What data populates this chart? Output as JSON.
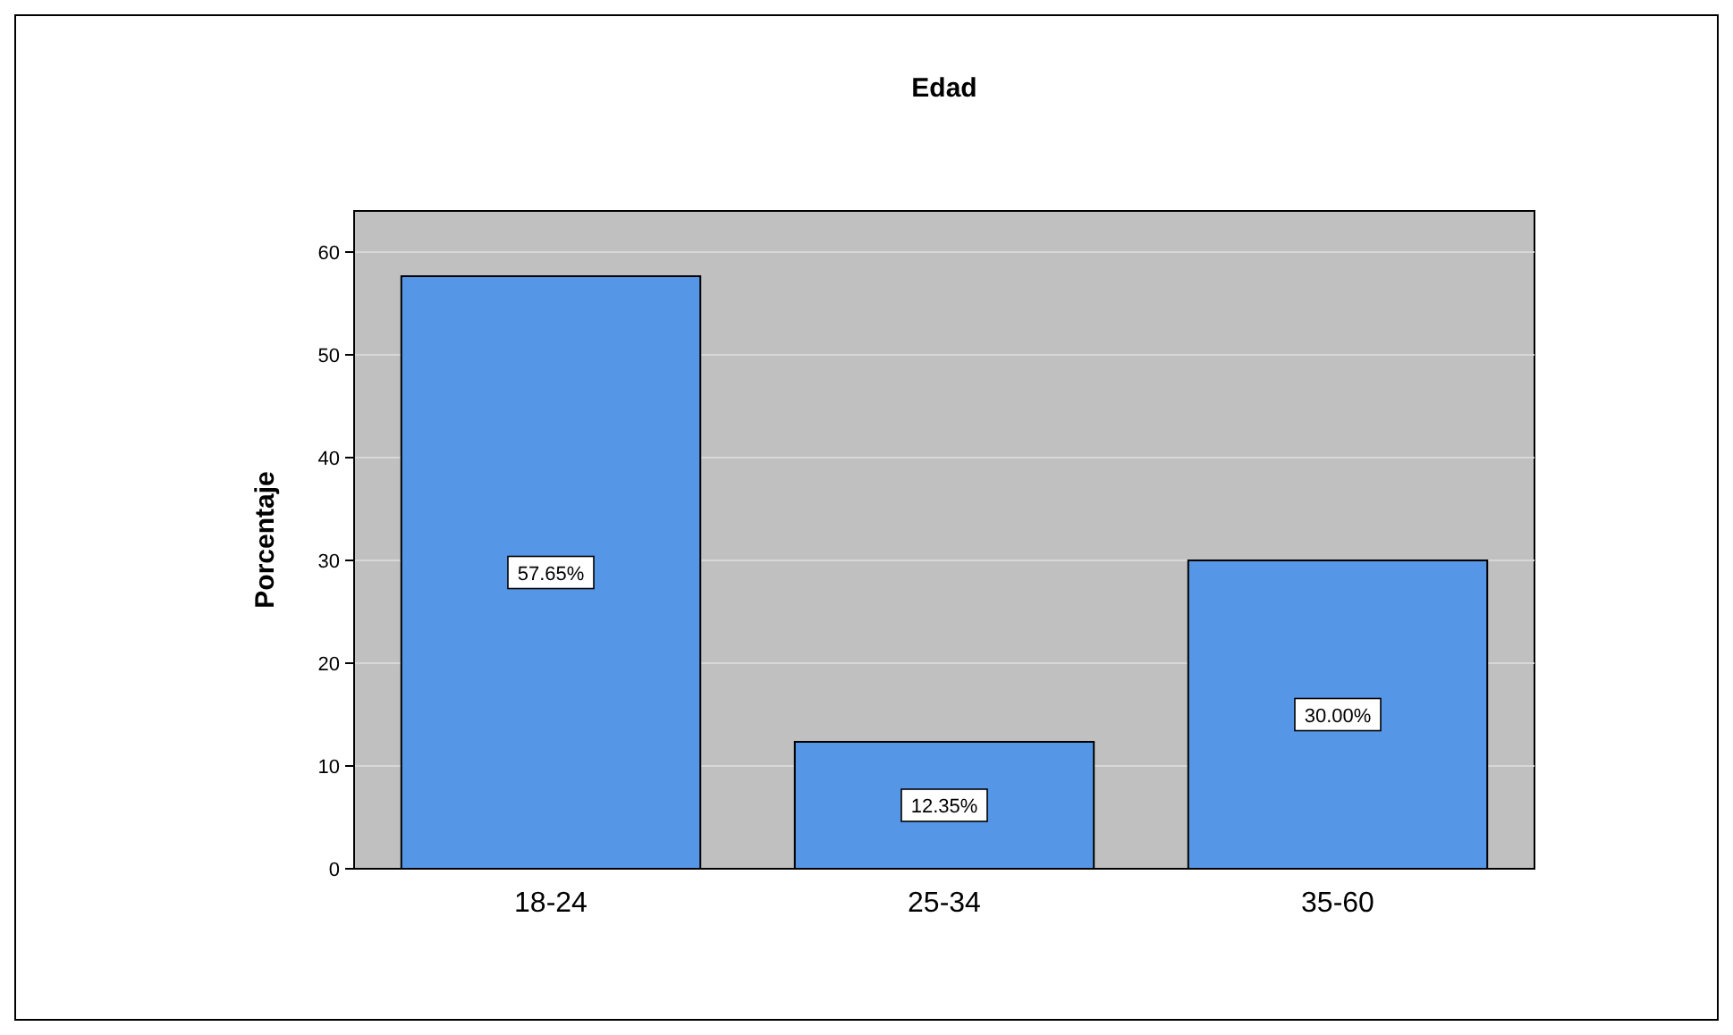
{
  "chart_data": {
    "type": "bar",
    "title": "Edad",
    "ylabel": "Porcentaje",
    "categories": [
      "18-24",
      "25-34",
      "35-60"
    ],
    "values": [
      57.65,
      12.35,
      30.0
    ],
    "value_labels": [
      "57.65%",
      "12.35%",
      "30.00%"
    ],
    "color": "#5596e6",
    "ylim": [
      0,
      64
    ],
    "yticks": [
      0,
      10,
      20,
      30,
      40,
      50,
      60
    ],
    "grid": "y"
  }
}
